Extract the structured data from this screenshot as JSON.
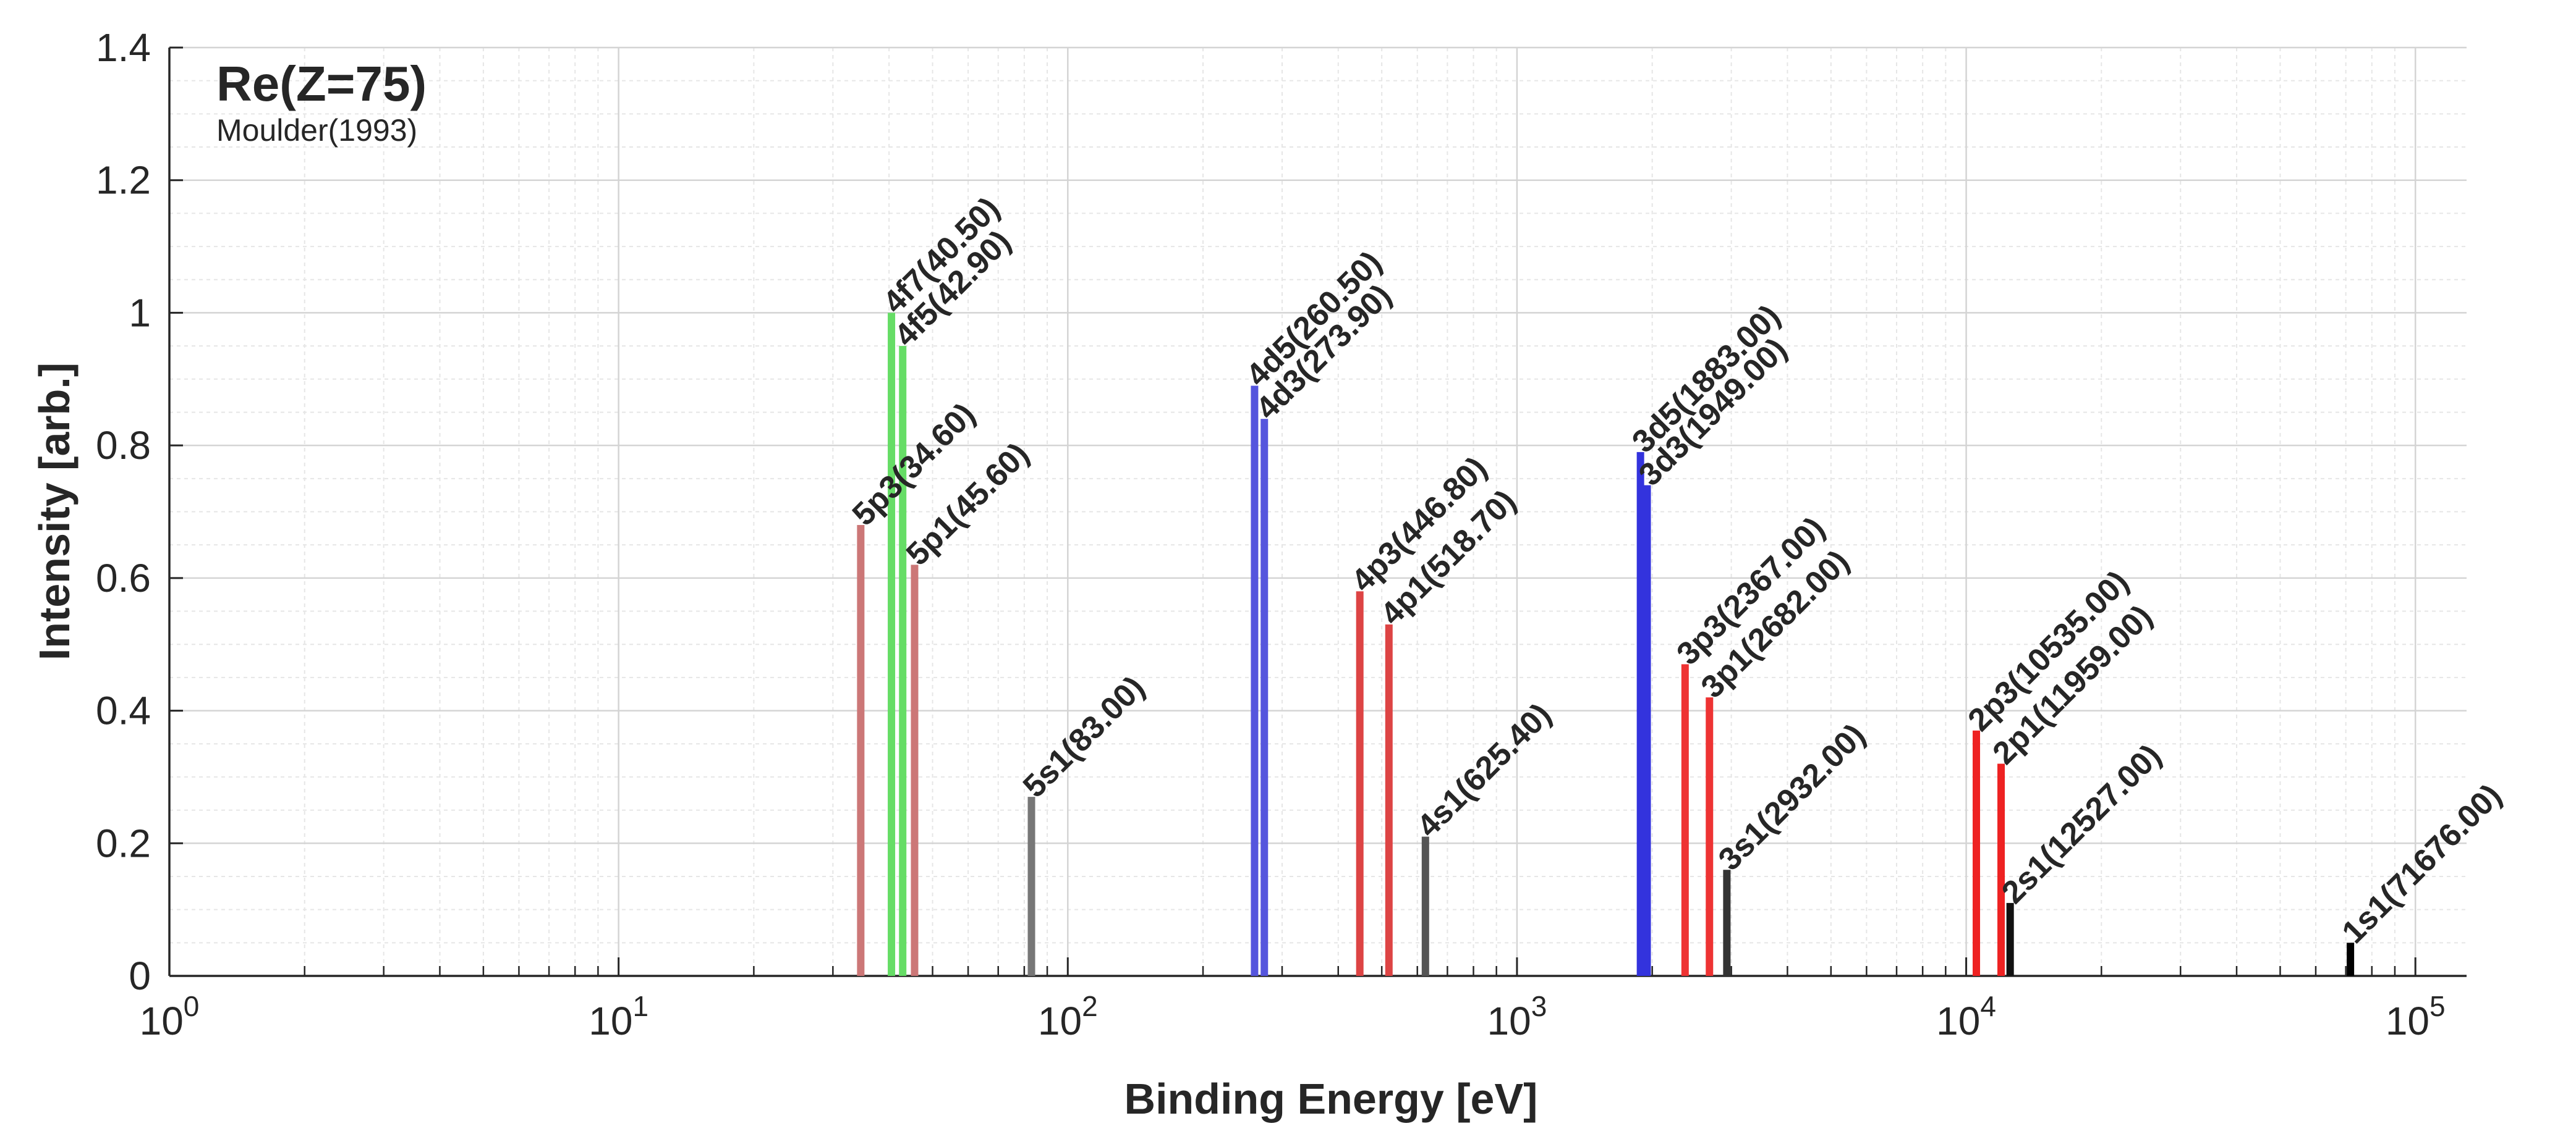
{
  "chart_data": {
    "type": "bar",
    "title": "Re(Z=75)",
    "subtitle": "Moulder(1993)",
    "xlabel": "Binding Energy [eV]",
    "ylabel": "Intensity [arb.]",
    "xscale": "log",
    "xlim": [
      1,
      130000
    ],
    "ylim": [
      0,
      1.4
    ],
    "x_ticks": [
      {
        "base": "10",
        "exp": "0",
        "value": 1
      },
      {
        "base": "10",
        "exp": "1",
        "value": 10
      },
      {
        "base": "10",
        "exp": "2",
        "value": 100
      },
      {
        "base": "10",
        "exp": "3",
        "value": 1000
      },
      {
        "base": "10",
        "exp": "4",
        "value": 10000
      },
      {
        "base": "10",
        "exp": "5",
        "value": 100000
      }
    ],
    "y_ticks": [
      {
        "label": "0",
        "value": 0
      },
      {
        "label": "0.2",
        "value": 0.2
      },
      {
        "label": "0.4",
        "value": 0.4
      },
      {
        "label": "0.6",
        "value": 0.6
      },
      {
        "label": "0.8",
        "value": 0.8
      },
      {
        "label": "1",
        "value": 1.0
      },
      {
        "label": "1.2",
        "value": 1.2
      },
      {
        "label": "1.4",
        "value": 1.4
      }
    ],
    "grid": true,
    "peaks": [
      {
        "label": "5p3(34.60)",
        "energy": 34.6,
        "intensity": 0.68,
        "color": "#cc7777"
      },
      {
        "label": "4f7(40.50)",
        "energy": 40.5,
        "intensity": 1.0,
        "color": "#66dd66"
      },
      {
        "label": "4f5(42.90)",
        "energy": 42.9,
        "intensity": 0.95,
        "color": "#66dd66"
      },
      {
        "label": "5p1(45.60)",
        "energy": 45.6,
        "intensity": 0.62,
        "color": "#cc7777"
      },
      {
        "label": "5s1(83.00)",
        "energy": 83.0,
        "intensity": 0.27,
        "color": "#777777"
      },
      {
        "label": "4d5(260.50)",
        "energy": 260.5,
        "intensity": 0.89,
        "color": "#5555dd"
      },
      {
        "label": "4d3(273.90)",
        "energy": 273.9,
        "intensity": 0.84,
        "color": "#5555dd"
      },
      {
        "label": "4p3(446.80)",
        "energy": 446.8,
        "intensity": 0.58,
        "color": "#dd4444"
      },
      {
        "label": "4p1(518.70)",
        "energy": 518.7,
        "intensity": 0.53,
        "color": "#dd4444"
      },
      {
        "label": "4s1(625.40)",
        "energy": 625.4,
        "intensity": 0.21,
        "color": "#555555"
      },
      {
        "label": "3d5(1883.00)",
        "energy": 1883.0,
        "intensity": 0.79,
        "color": "#3333dd"
      },
      {
        "label": "3d3(1949.00)",
        "energy": 1949.0,
        "intensity": 0.74,
        "color": "#3333dd"
      },
      {
        "label": "3p3(2367.00)",
        "energy": 2367.0,
        "intensity": 0.47,
        "color": "#ee3333"
      },
      {
        "label": "3p1(2682.00)",
        "energy": 2682.0,
        "intensity": 0.42,
        "color": "#ee3333"
      },
      {
        "label": "3s1(2932.00)",
        "energy": 2932.0,
        "intensity": 0.16,
        "color": "#333333"
      },
      {
        "label": "2p3(10535.00)",
        "energy": 10535.0,
        "intensity": 0.37,
        "color": "#ee2222"
      },
      {
        "label": "2p1(11959.00)",
        "energy": 11959.0,
        "intensity": 0.32,
        "color": "#ee2222"
      },
      {
        "label": "2s1(12527.00)",
        "energy": 12527.0,
        "intensity": 0.11,
        "color": "#111111"
      },
      {
        "label": "1s1(71676.00)",
        "energy": 71676.0,
        "intensity": 0.05,
        "color": "#000000"
      }
    ]
  }
}
